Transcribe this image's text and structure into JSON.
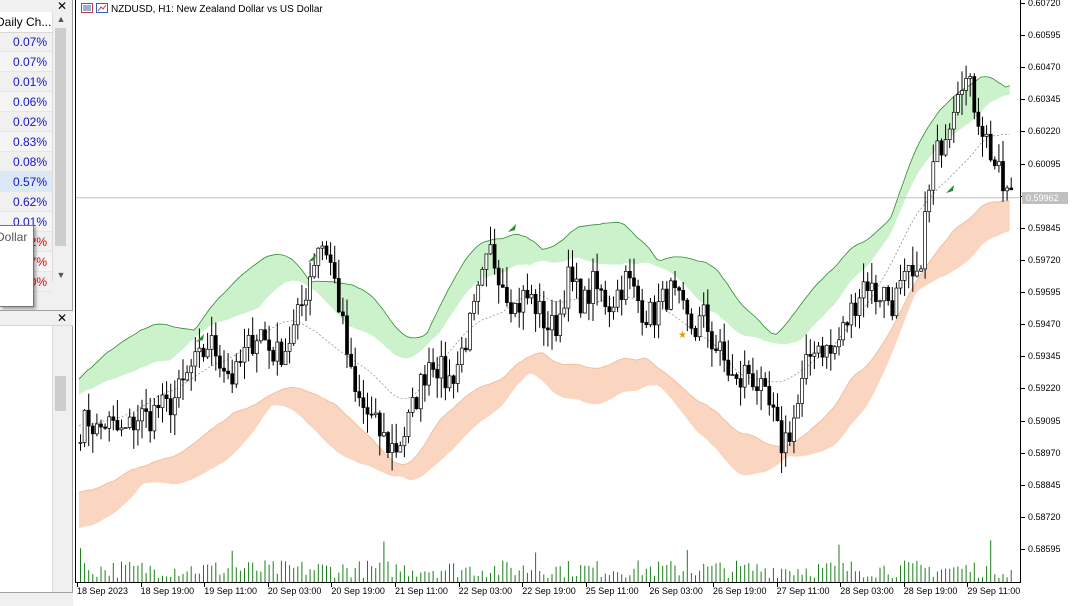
{
  "market_watch": {
    "header": "Daily Ch...",
    "rows": [
      "0.07%",
      "0.07%",
      "0.01%",
      "0.06%",
      "0.02%",
      "0.83%",
      "0.08%",
      "0.57%",
      "0.62%",
      "0.01%",
      "2%",
      "7%",
      "0%"
    ],
    "tooltip": "Dollar"
  },
  "chart": {
    "title": "NZDUSD, H1:  New Zealand Dollar vs US Dollar",
    "current_price": "0.59962",
    "colors": {
      "upper_band": "#ccf2cc",
      "upper_line": "#2e8b2e",
      "lower_band": "#fad6c0",
      "lower_line": "#f0b894",
      "candle": "#000000",
      "volume": "#1a7f1a"
    }
  },
  "chart_data": {
    "type": "candlestick",
    "symbol": "NZDUSD",
    "timeframe": "H1",
    "ylim": [
      0.5855,
      0.6072
    ],
    "price_ticks": [
      "0.60720",
      "0.60595",
      "0.60470",
      "0.60345",
      "0.60220",
      "0.60095",
      "0.59970",
      "0.59845",
      "0.59720",
      "0.59595",
      "0.59470",
      "0.59345",
      "0.59220",
      "0.59095",
      "0.58970",
      "0.58845",
      "0.58720",
      "0.58595"
    ],
    "time_ticks": [
      "18 Sep 2023",
      "18 Sep 19:00",
      "19 Sep 11:00",
      "20 Sep 03:00",
      "20 Sep 19:00",
      "21 Sep 11:00",
      "22 Sep 03:00",
      "22 Sep 19:00",
      "25 Sep 11:00",
      "26 Sep 03:00",
      "26 Sep 19:00",
      "27 Sep 11:00",
      "28 Sep 03:00",
      "28 Sep 19:00",
      "29 Sep 11:00"
    ],
    "close_path": [
      0.5907,
      0.591,
      0.5905,
      0.5909,
      0.5906,
      0.5904,
      0.5908,
      0.5912,
      0.591,
      0.5915,
      0.5914,
      0.5918,
      0.5923,
      0.593,
      0.5933,
      0.594,
      0.5936,
      0.593,
      0.5925,
      0.5934,
      0.594,
      0.5945,
      0.5938,
      0.5935,
      0.5938,
      0.5945,
      0.5955,
      0.5968,
      0.598,
      0.5975,
      0.596,
      0.594,
      0.592,
      0.5915,
      0.591,
      0.5905,
      0.59,
      0.5899,
      0.5905,
      0.5915,
      0.5925,
      0.5935,
      0.593,
      0.5924,
      0.593,
      0.594,
      0.595,
      0.5963,
      0.5975,
      0.5968,
      0.596,
      0.5953,
      0.5958,
      0.5956,
      0.595,
      0.5945,
      0.5948,
      0.5965,
      0.596,
      0.5955,
      0.5962,
      0.5958,
      0.5955,
      0.596,
      0.5965,
      0.5958,
      0.5952,
      0.595,
      0.5955,
      0.596,
      0.5955,
      0.5948,
      0.5945,
      0.595,
      0.594,
      0.5935,
      0.5928,
      0.5922,
      0.593,
      0.5925,
      0.5918,
      0.5912,
      0.59,
      0.5905,
      0.5915,
      0.593,
      0.594,
      0.5938,
      0.5935,
      0.5942,
      0.595,
      0.5958,
      0.5965,
      0.5958,
      0.596,
      0.5955,
      0.596,
      0.5965,
      0.5962,
      0.599,
      0.601,
      0.602,
      0.603,
      0.6045,
      0.604,
      0.603,
      0.602,
      0.601,
      0.6,
      0.5996
    ],
    "annotations": [
      "buy-arrow",
      "buy-arrow",
      "buy-arrow",
      "buy-arrow",
      "star-signal"
    ]
  }
}
